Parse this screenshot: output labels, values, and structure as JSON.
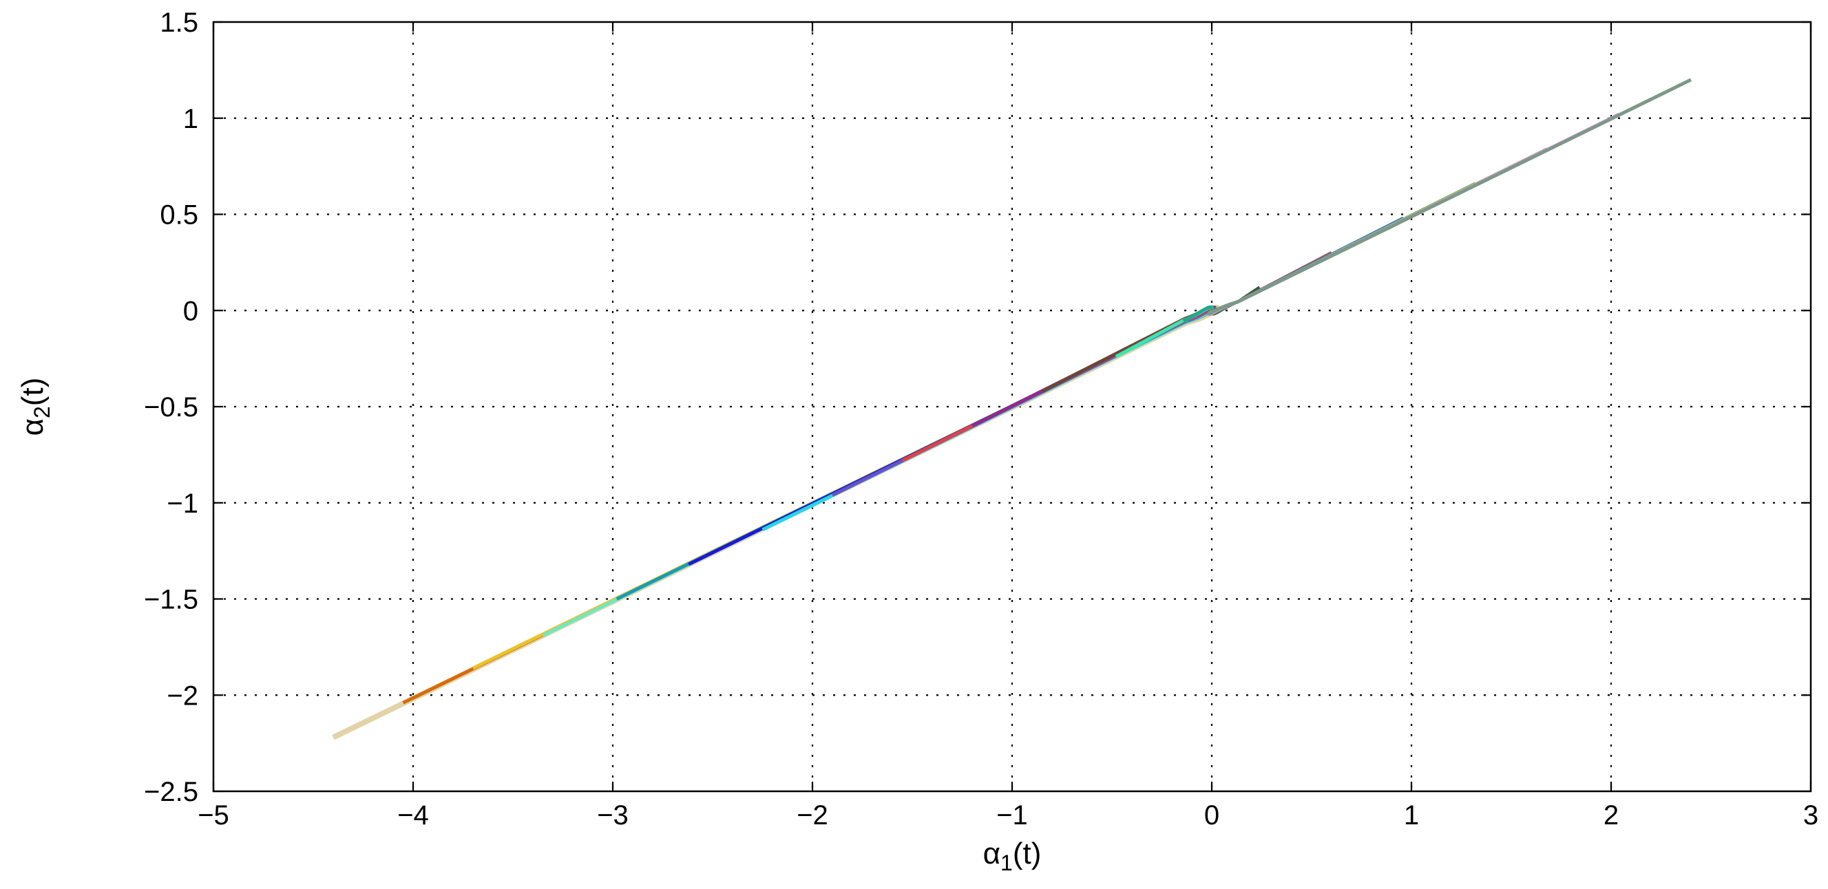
{
  "chart_data": {
    "type": "line",
    "title": "",
    "xlabel": "α₁(t)",
    "ylabel": "α₂(t)",
    "xlabel_parts": {
      "symbol": "α",
      "subscript": "1",
      "suffix": "(t)"
    },
    "ylabel_parts": {
      "symbol": "α",
      "subscript": "2",
      "suffix": "(t)"
    },
    "xlim": [
      -5,
      3
    ],
    "ylim": [
      -2.5,
      1.5
    ],
    "grid": true,
    "legend": "none",
    "xticks": [
      -5,
      -4,
      -3,
      -2,
      -1,
      0,
      1,
      2,
      3
    ],
    "xtick_labels": [
      "−5",
      "−4",
      "−3",
      "−2",
      "−1",
      "0",
      "1",
      "2",
      "3"
    ],
    "yticks": [
      -2.5,
      -2,
      -1.5,
      -1,
      -0.5,
      0,
      0.5,
      1,
      1.5
    ],
    "ytick_labels": [
      "−2.5",
      "−2",
      "−1.5",
      "−1",
      "−0.5",
      "0",
      "0.5",
      "1",
      "1.5"
    ],
    "series": [
      {
        "color": "#e2d4a8",
        "start": [
          -4.4,
          -2.22
        ],
        "knee": 0.072
      },
      {
        "color": "#d76b0b",
        "start": [
          -4.05,
          -2.04
        ],
        "knee": 0.06
      },
      {
        "color": "#e9c32a",
        "start": [
          -3.7,
          -1.86
        ],
        "knee": 0.058
      },
      {
        "color": "#6fe7c4",
        "start": [
          -3.35,
          -1.69
        ],
        "knee": 0.055
      },
      {
        "color": "#1a9bb4",
        "start": [
          -2.98,
          -1.5
        ],
        "knee": 0.052
      },
      {
        "color": "#1b1ad8",
        "start": [
          -2.62,
          -1.32
        ],
        "knee": 0.05
      },
      {
        "color": "#25d6ea",
        "start": [
          -2.25,
          -1.14
        ],
        "knee": 0.046
      },
      {
        "color": "#6951c7",
        "start": [
          -1.9,
          -0.96
        ],
        "knee": 0.043
      },
      {
        "color": "#e04148",
        "start": [
          -1.55,
          -0.78
        ],
        "knee": 0.04
      },
      {
        "color": "#8d2a92",
        "start": [
          -1.2,
          -0.6
        ],
        "knee": 0.036
      },
      {
        "color": "#6b4638",
        "start": [
          -0.85,
          -0.42
        ],
        "knee": 0.032
      },
      {
        "color": "#3ee4ae",
        "start": [
          -0.48,
          -0.24
        ],
        "knee": 0.026
      },
      {
        "color": "#22a888",
        "start": [
          -0.12,
          -0.06
        ],
        "knee": 0.016
      },
      {
        "color": "#2f5e33",
        "start": [
          0.24,
          0.12
        ],
        "knee": -0.02
      },
      {
        "color": "#9a5d66",
        "start": [
          0.6,
          0.3
        ],
        "knee": -0.028
      },
      {
        "color": "#2f6fc6",
        "start": [
          0.96,
          0.48
        ],
        "knee": -0.035
      },
      {
        "color": "#7cc154",
        "start": [
          1.32,
          0.66
        ],
        "knee": -0.04
      },
      {
        "color": "#aeaaa0",
        "start": [
          1.68,
          0.84
        ],
        "knee": -0.045
      },
      {
        "color": "#e88de9",
        "start": [
          2.04,
          1.02
        ],
        "knee": -0.05
      },
      {
        "color": "#7c9888",
        "start": [
          2.4,
          1.2
        ],
        "knee": -0.055
      }
    ]
  }
}
